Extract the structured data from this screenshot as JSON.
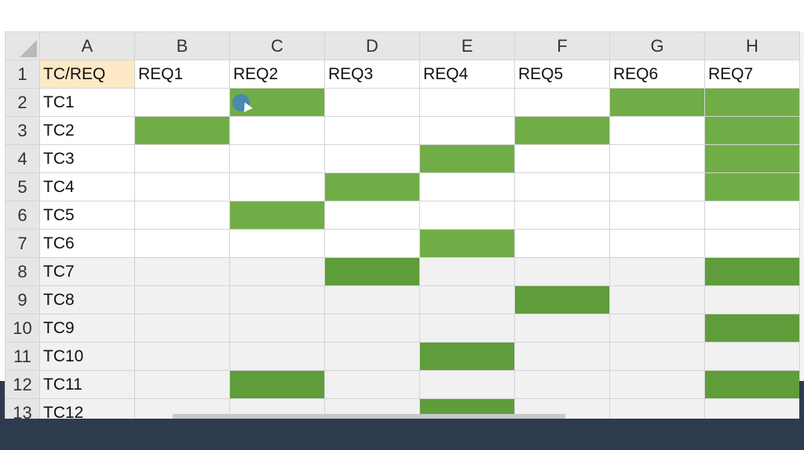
{
  "spreadsheet": {
    "column_headers": [
      "A",
      "B",
      "C",
      "D",
      "E",
      "F",
      "G",
      "H"
    ],
    "row_numbers": [
      "1",
      "2",
      "3",
      "4",
      "5",
      "6",
      "7",
      "8",
      "9",
      "10",
      "11",
      "12",
      "13"
    ],
    "header_row": [
      "TC/REQ",
      "REQ1",
      "REQ2",
      "REQ3",
      "REQ4",
      "REQ5",
      "REQ6",
      "REQ7"
    ],
    "test_cases": [
      "TC1",
      "TC2",
      "TC3",
      "TC4",
      "TC5",
      "TC6",
      "TC7",
      "TC8",
      "TC9",
      "TC10",
      "TC11",
      "TC12"
    ],
    "highlight_color": "#70ad47",
    "header_cell_color": "#fde9c6",
    "coverage": [
      [
        0,
        1,
        0,
        0,
        0,
        1,
        1
      ],
      [
        1,
        0,
        0,
        0,
        1,
        0,
        1
      ],
      [
        0,
        0,
        0,
        1,
        0,
        0,
        1
      ],
      [
        0,
        0,
        1,
        0,
        0,
        0,
        1
      ],
      [
        0,
        1,
        0,
        0,
        0,
        0,
        0
      ],
      [
        0,
        0,
        0,
        1,
        0,
        0,
        0
      ],
      [
        0,
        0,
        1,
        0,
        0,
        0,
        1
      ],
      [
        0,
        0,
        0,
        0,
        1,
        0,
        0
      ],
      [
        0,
        0,
        0,
        0,
        0,
        0,
        1
      ],
      [
        0,
        0,
        0,
        1,
        0,
        0,
        0
      ],
      [
        0,
        1,
        0,
        0,
        0,
        0,
        1
      ],
      [
        0,
        0,
        0,
        1,
        0,
        0,
        0
      ]
    ]
  }
}
